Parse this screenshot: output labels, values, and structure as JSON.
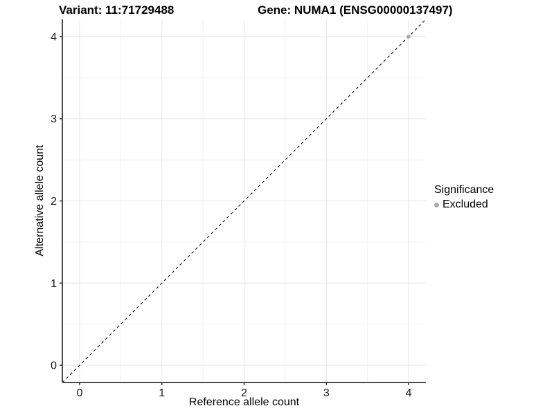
{
  "titles": {
    "variant": "Variant: 11:71729488",
    "gene": "Gene: NUMA1 (ENSG00000137497)"
  },
  "chart_data": {
    "type": "scatter",
    "title_left": "Variant: 11:71729488",
    "title_right": "Gene: NUMA1 (ENSG00000137497)",
    "x": {
      "label": "Reference allele count",
      "ticks": [
        0,
        1,
        2,
        3,
        4
      ],
      "range": [
        -0.21,
        4.21
      ]
    },
    "y": {
      "label": "Alternative allele count",
      "ticks": [
        0,
        1,
        2,
        3,
        4
      ],
      "range": [
        -0.21,
        4.21
      ]
    },
    "series": [
      {
        "name": "Excluded",
        "color": "#aaaaaa",
        "points": [
          {
            "x": 4,
            "y": 4
          }
        ]
      }
    ],
    "reference_line": {
      "style": "dashed",
      "color": "#1a1a1a",
      "from": [
        -0.21,
        -0.21
      ],
      "to": [
        4.21,
        4.21
      ]
    },
    "legend": {
      "title": "Significance",
      "position": "right",
      "items": [
        {
          "label": "Excluded",
          "color": "#aaaaaa"
        }
      ]
    },
    "grid": {
      "major": true,
      "minor": true,
      "major_color": "#e5e5e5",
      "minor_color": "#f2f2f2"
    },
    "axis_line_color": "#4d4d4d",
    "tick_color": "#333333",
    "tick_label_color": "#1a1a1a"
  }
}
